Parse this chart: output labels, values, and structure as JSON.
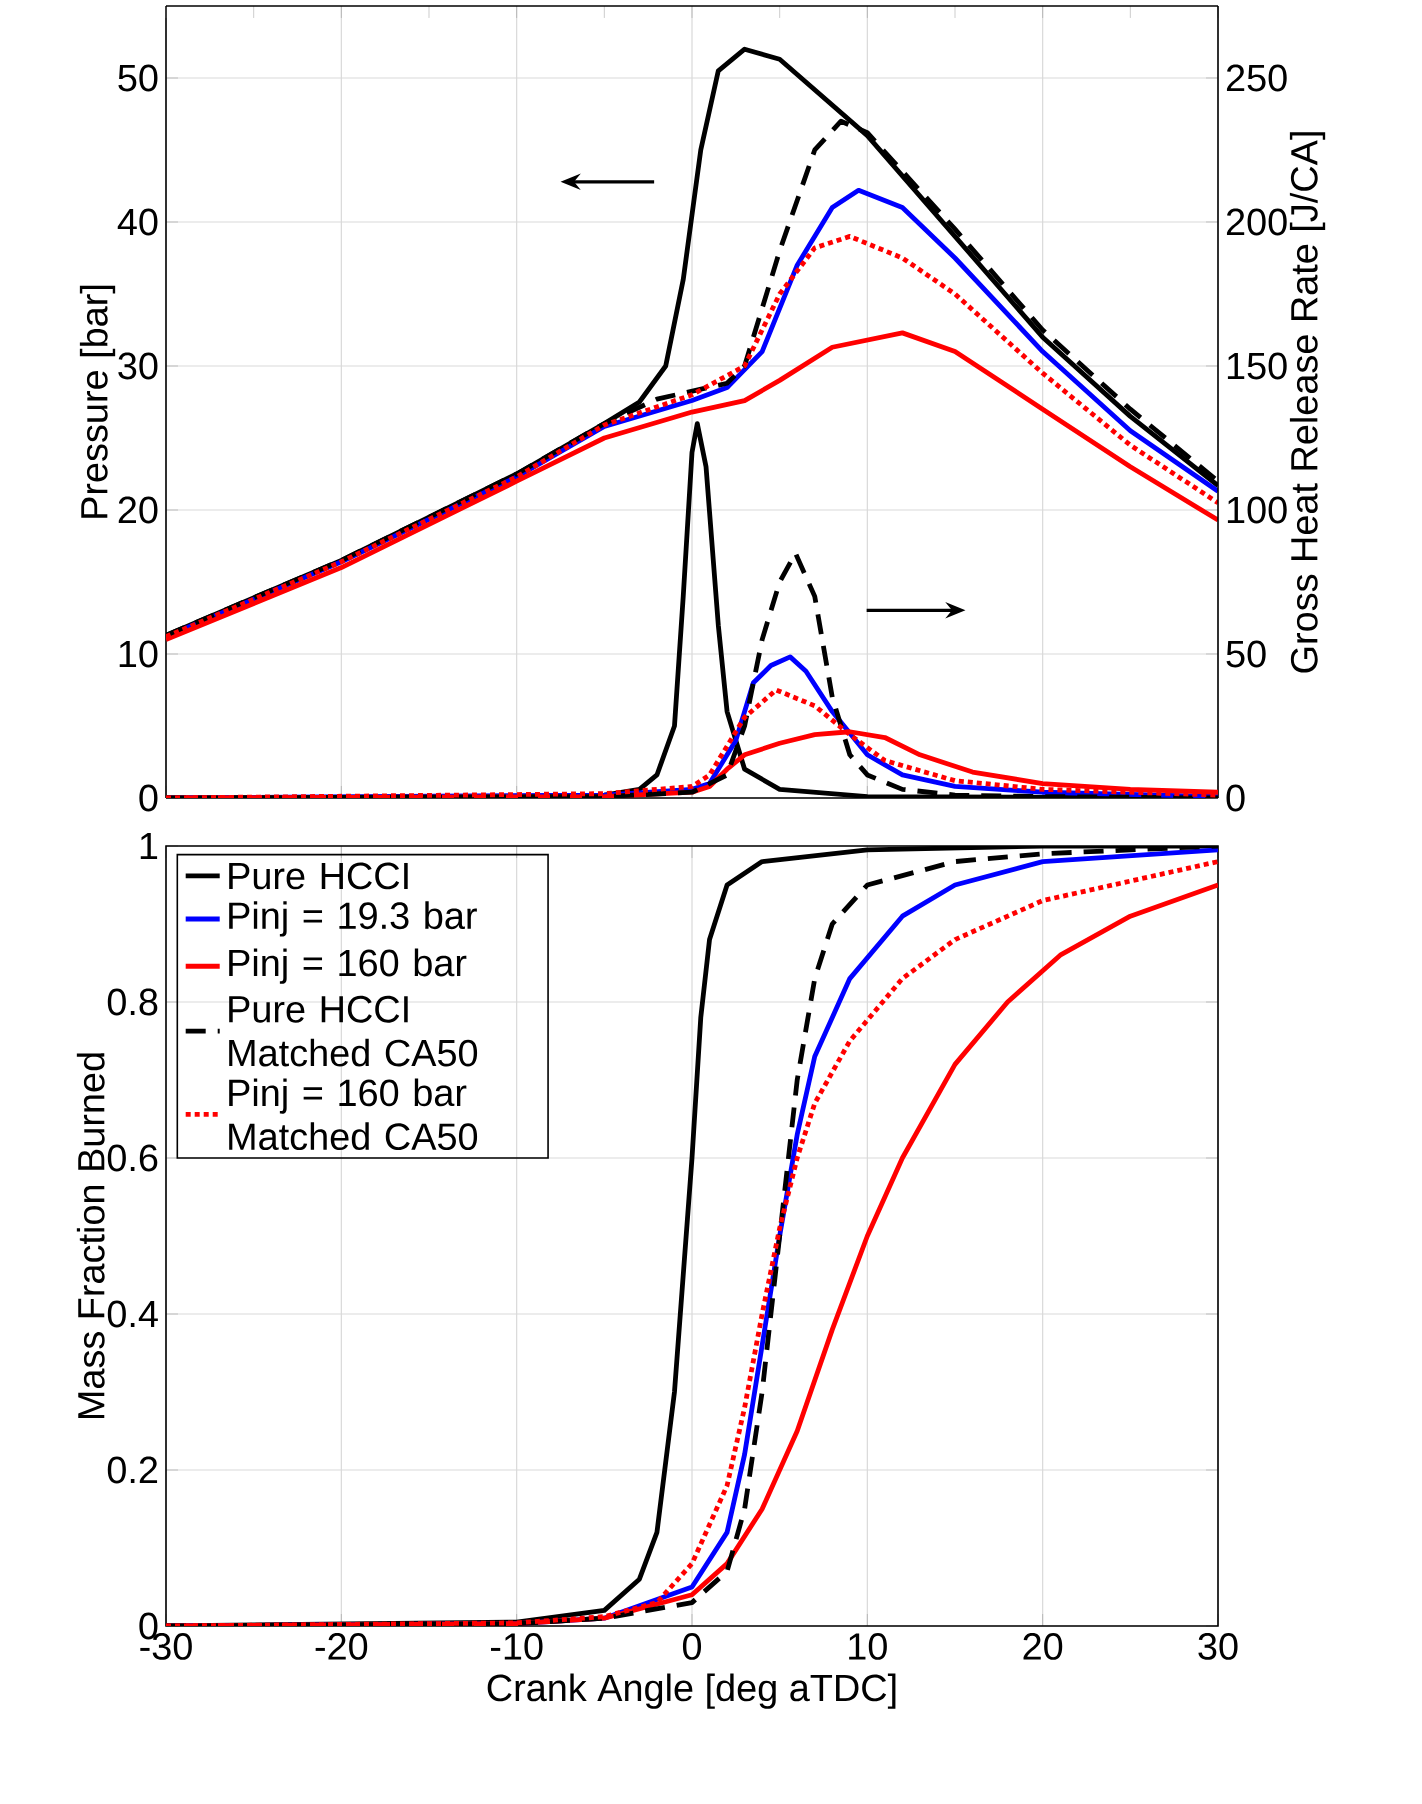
{
  "chart_data": [
    {
      "type": "line",
      "ylabel": "Pressure [bar]",
      "y2label": "Gross Heat Release Rate [J/CA]",
      "xlim": [
        -30,
        30
      ],
      "xticks": [
        -30,
        -20,
        -10,
        0,
        10,
        20,
        30
      ],
      "ylim": [
        0,
        55
      ],
      "yticks": [
        0,
        10,
        20,
        30,
        40,
        50
      ],
      "y2lim": [
        0,
        275
      ],
      "y2ticks": [
        0,
        50,
        100,
        150,
        200,
        250
      ],
      "grid": true,
      "tick_labels": "y",
      "series": [
        {
          "color": "#000000",
          "line_style": "solid",
          "x": [
            -30,
            -20,
            -10,
            -5,
            -3,
            -1.5,
            -0.5,
            0.5,
            1.5,
            3,
            5,
            10,
            15,
            20,
            25,
            30
          ],
          "values": [
            11.3,
            16.5,
            22.5,
            26,
            27.5,
            30,
            36,
            45,
            50.5,
            52,
            51.3,
            46,
            39,
            32,
            26.5,
            21.7
          ]
        },
        {
          "color": "#0000ff",
          "line_style": "solid",
          "x": [
            -30,
            -20,
            -10,
            -5,
            0,
            2,
            4,
            6,
            8,
            9.5,
            12,
            15,
            20,
            25,
            30
          ],
          "values": [
            11.2,
            16.4,
            22.3,
            25.8,
            27.6,
            28.5,
            31,
            37,
            41,
            42.2,
            41,
            37.5,
            31,
            25.5,
            21.3
          ]
        },
        {
          "color": "#ff0000",
          "line_style": "solid",
          "x": [
            -30,
            -20,
            -10,
            -5,
            0,
            3,
            5,
            8,
            12,
            15,
            20,
            25,
            30
          ],
          "values": [
            11,
            16,
            22,
            25,
            26.8,
            27.6,
            29,
            31.3,
            32.3,
            31,
            27,
            23,
            19.3
          ]
        },
        {
          "color": "#000000",
          "line_style": "dashed",
          "x": [
            -30,
            -20,
            -10,
            -5,
            -2,
            2,
            3,
            5,
            7,
            8.5,
            10,
            15,
            20,
            25,
            30
          ],
          "values": [
            11.3,
            16.5,
            22.5,
            26,
            27.7,
            28.8,
            30,
            38,
            45,
            47,
            46.2,
            39.5,
            32.5,
            27,
            22
          ]
        },
        {
          "color": "#ff0000",
          "line_style": "dotted",
          "x": [
            -30,
            -20,
            -10,
            -5,
            0,
            3,
            5,
            7,
            9,
            12,
            15,
            20,
            25,
            30
          ],
          "values": [
            11.2,
            16.4,
            22.3,
            25.9,
            28,
            30,
            35,
            38.2,
            39,
            37.5,
            35,
            29.5,
            24.5,
            20.5
          ]
        },
        {
          "color": "#000000",
          "line_style": "solid",
          "axis": "y2",
          "x": [
            -30,
            -10,
            -5,
            -3,
            -2,
            -1,
            -0.5,
            0,
            0.3,
            0.8,
            1.5,
            2,
            3,
            5,
            10,
            30
          ],
          "values": [
            0,
            0.5,
            1,
            3,
            8,
            25,
            70,
            120,
            130,
            115,
            60,
            30,
            10,
            3,
            0.5,
            0
          ]
        },
        {
          "color": "#0000ff",
          "line_style": "solid",
          "axis": "y2",
          "x": [
            -30,
            -5,
            0,
            1,
            2.5,
            3.5,
            4.5,
            5.6,
            6.5,
            8,
            10,
            12,
            15,
            20,
            30
          ],
          "values": [
            0,
            1,
            3,
            5,
            20,
            40,
            46,
            49,
            44,
            30,
            15,
            8,
            4,
            2,
            0.5
          ]
        },
        {
          "color": "#ff0000",
          "line_style": "solid",
          "axis": "y2",
          "x": [
            -30,
            -5,
            0,
            1,
            2,
            3,
            5,
            7,
            9,
            11,
            13,
            16,
            20,
            25,
            30
          ],
          "values": [
            0,
            0.5,
            2,
            4,
            10,
            15,
            19,
            22,
            23,
            21,
            15,
            9,
            5,
            3,
            2
          ]
        },
        {
          "color": "#000000",
          "line_style": "dashed",
          "axis": "y2",
          "x": [
            -30,
            -5,
            0,
            2,
            3,
            4,
            5,
            5.9,
            7,
            8,
            9,
            10,
            12,
            15,
            20,
            30
          ],
          "values": [
            0,
            0.5,
            2,
            8,
            25,
            55,
            75,
            85,
            70,
            35,
            15,
            8,
            3,
            1,
            0.5,
            0
          ]
        },
        {
          "color": "#ff0000",
          "line_style": "dotted",
          "axis": "y2",
          "x": [
            -30,
            -5,
            0,
            1,
            2,
            3,
            4.8,
            7,
            9,
            11,
            15,
            20,
            30
          ],
          "values": [
            0,
            1.5,
            4,
            8,
            18,
            28,
            37.5,
            32,
            22,
            13,
            6,
            3,
            1
          ]
        }
      ]
    },
    {
      "type": "line",
      "xlabel": "Crank Angle [deg aTDC]",
      "ylabel": "Mass Fraction Burned",
      "xlim": [
        -30,
        30
      ],
      "xticks": [
        -30,
        -20,
        -10,
        0,
        10,
        20,
        30
      ],
      "ylim": [
        0,
        1
      ],
      "yticks": [
        0,
        0.2,
        0.4,
        0.6,
        0.8,
        1
      ],
      "grid": true,
      "legend": "top left",
      "series": [
        {
          "name": "Pure HCCI",
          "color": "#000000",
          "line_style": "solid",
          "x": [
            -30,
            -10,
            -5,
            -3,
            -2,
            -1,
            0,
            0.5,
            1,
            2,
            4,
            10,
            20,
            30
          ],
          "values": [
            0,
            0.005,
            0.02,
            0.06,
            0.12,
            0.3,
            0.6,
            0.78,
            0.88,
            0.95,
            0.98,
            0.995,
            1,
            1
          ]
        },
        {
          "name": "Pinj = 19.3 bar",
          "color": "#0000ff",
          "line_style": "solid",
          "x": [
            -30,
            -10,
            -5,
            0,
            2,
            3,
            4,
            5,
            6,
            7,
            9,
            12,
            15,
            20,
            30
          ],
          "values": [
            0,
            0.003,
            0.01,
            0.05,
            0.12,
            0.22,
            0.36,
            0.5,
            0.63,
            0.73,
            0.83,
            0.91,
            0.95,
            0.98,
            0.995
          ]
        },
        {
          "name": "Pinj = 160 bar",
          "color": "#ff0000",
          "line_style": "solid",
          "x": [
            -30,
            -10,
            -5,
            0,
            2,
            4,
            6,
            8,
            10,
            12,
            15,
            18,
            21,
            25,
            30
          ],
          "values": [
            0,
            0.003,
            0.01,
            0.04,
            0.08,
            0.15,
            0.25,
            0.38,
            0.5,
            0.6,
            0.72,
            0.8,
            0.86,
            0.91,
            0.95
          ]
        },
        {
          "name": "Pure HCCI Matched CA50",
          "color": "#000000",
          "line_style": "dashed",
          "x": [
            -30,
            -10,
            -5,
            0,
            2,
            3,
            4,
            5,
            6,
            7,
            8,
            10,
            15,
            20,
            30
          ],
          "values": [
            0,
            0.003,
            0.01,
            0.03,
            0.07,
            0.15,
            0.3,
            0.5,
            0.7,
            0.83,
            0.9,
            0.95,
            0.98,
            0.99,
            1
          ]
        },
        {
          "name": "Pinj = 160 bar Matched CA50",
          "color": "#ff0000",
          "line_style": "dotted",
          "x": [
            -30,
            -10,
            -5,
            -2,
            0,
            2,
            3,
            4,
            5,
            6,
            7,
            9,
            12,
            15,
            20,
            30
          ],
          "values": [
            0,
            0.004,
            0.012,
            0.03,
            0.08,
            0.18,
            0.28,
            0.4,
            0.51,
            0.6,
            0.67,
            0.75,
            0.83,
            0.88,
            0.93,
            0.98
          ]
        }
      ]
    }
  ]
}
